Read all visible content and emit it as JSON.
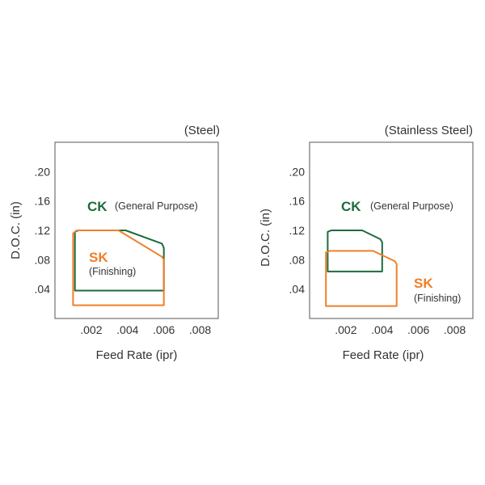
{
  "colors": {
    "ck": "#1e6b3c",
    "sk": "#f07f2a",
    "frame": "#555555",
    "text": "#333333"
  },
  "chart_data": [
    {
      "type": "area",
      "title": "(Steel)",
      "xlabel": "Feed Rate (ipr)",
      "ylabel": "D.O.C. (in)",
      "xlim": [
        0,
        0.009
      ],
      "ylim": [
        0,
        0.24
      ],
      "xticks": [
        0.002,
        0.004,
        0.006,
        0.008
      ],
      "xtick_labels": [
        ".002",
        ".004",
        ".006",
        ".008"
      ],
      "yticks": [
        0.04,
        0.08,
        0.12,
        0.16,
        0.2
      ],
      "ytick_labels": [
        ".04",
        ".08",
        ".12",
        ".16",
        ".20"
      ],
      "series": [
        {
          "key": "ck",
          "name": "CK",
          "note": "(General Purpose)",
          "points": [
            [
              0.0013,
              0.12
            ],
            [
              0.0039,
              0.12
            ],
            [
              0.0059,
              0.102
            ],
            [
              0.006,
              0.096
            ],
            [
              0.006,
              0.038
            ],
            [
              0.0011,
              0.038
            ],
            [
              0.0011,
              0.118
            ]
          ]
        },
        {
          "key": "sk",
          "name": "SK",
          "note": "(Finishing)",
          "points": [
            [
              0.0012,
              0.12
            ],
            [
              0.0035,
              0.12
            ],
            [
              0.0059,
              0.084
            ],
            [
              0.006,
              0.08
            ],
            [
              0.006,
              0.018
            ],
            [
              0.001,
              0.018
            ],
            [
              0.001,
              0.116
            ]
          ]
        }
      ]
    },
    {
      "type": "area",
      "title": "(Stainless Steel)",
      "xlabel": "Feed Rate (ipr)",
      "ylabel": "D.O.C. (in)",
      "xlim": [
        0,
        0.009
      ],
      "ylim": [
        0,
        0.24
      ],
      "xticks": [
        0.002,
        0.004,
        0.006,
        0.008
      ],
      "xtick_labels": [
        ".002",
        ".004",
        ".006",
        ".008"
      ],
      "yticks": [
        0.04,
        0.08,
        0.12,
        0.16,
        0.2
      ],
      "ytick_labels": [
        ".04",
        ".08",
        ".12",
        ".16",
        ".20"
      ],
      "series": [
        {
          "key": "ck",
          "name": "CK",
          "note": "(General Purpose)",
          "points": [
            [
              0.0012,
              0.12
            ],
            [
              0.0029,
              0.12
            ],
            [
              0.0039,
              0.108
            ],
            [
              0.004,
              0.104
            ],
            [
              0.004,
              0.064
            ],
            [
              0.001,
              0.064
            ],
            [
              0.001,
              0.118
            ]
          ]
        },
        {
          "key": "sk",
          "name": "SK",
          "note": "(Finishing)",
          "points": [
            [
              0.0011,
              0.092
            ],
            [
              0.0035,
              0.092
            ],
            [
              0.0047,
              0.078
            ],
            [
              0.0048,
              0.074
            ],
            [
              0.0048,
              0.017
            ],
            [
              0.0009,
              0.017
            ],
            [
              0.0009,
              0.09
            ]
          ]
        }
      ]
    }
  ]
}
